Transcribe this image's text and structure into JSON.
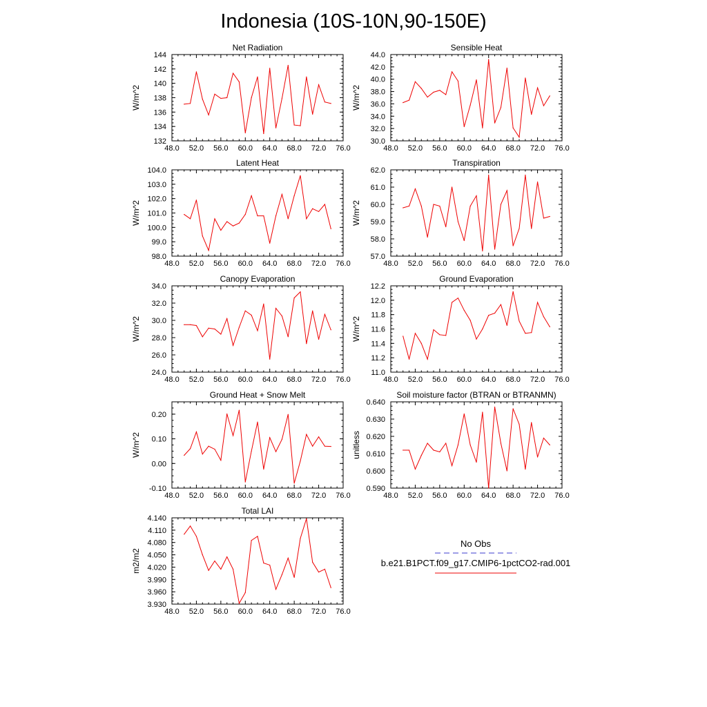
{
  "title": "Indonesia (10S-10N,90-150E)",
  "legend": {
    "entries": [
      {
        "label": "No Obs",
        "color": "#3a3acc",
        "style": "dashed"
      },
      {
        "label": "b.e21.B1PCT.f09_g17.CMIP6-1pctCO2-rad.001",
        "color": "#ee0000",
        "style": "solid"
      }
    ]
  },
  "chart_data": [
    {
      "type": "line",
      "title": "Net Radiation",
      "ylabel": "W/m^2",
      "xlim": [
        48,
        76
      ],
      "ylim": [
        132,
        144
      ],
      "xticks": [
        "48.0",
        "52.0",
        "56.0",
        "60.0",
        "64.0",
        "68.0",
        "72.0",
        "76.0"
      ],
      "yticks": [
        "132",
        "134",
        "136",
        "138",
        "140",
        "142",
        "144"
      ],
      "series": [
        {
          "color": "#ee0000",
          "x": [
            50,
            51,
            52,
            53,
            54,
            55,
            56,
            57,
            58,
            59,
            60,
            61,
            62,
            63,
            64,
            65,
            66,
            67,
            68,
            69,
            70,
            71,
            72,
            73,
            74
          ],
          "values": [
            137.1,
            137.2,
            141.6,
            137.8,
            135.6,
            138.5,
            137.9,
            138.0,
            141.4,
            140.2,
            133.1,
            138.0,
            140.9,
            133.0,
            142.1,
            133.8,
            137.9,
            142.5,
            134.2,
            134.1,
            140.9,
            135.7,
            139.8,
            137.4,
            137.2
          ]
        }
      ]
    },
    {
      "type": "line",
      "title": "Sensible Heat",
      "ylabel": "W/m^2",
      "xlim": [
        48,
        76
      ],
      "ylim": [
        30,
        44
      ],
      "xticks": [
        "48.0",
        "52.0",
        "56.0",
        "60.0",
        "64.0",
        "68.0",
        "72.0",
        "76.0"
      ],
      "yticks": [
        "30.0",
        "32.0",
        "34.0",
        "36.0",
        "38.0",
        "40.0",
        "42.0",
        "44.0"
      ],
      "series": [
        {
          "color": "#ee0000",
          "x": [
            50,
            51,
            52,
            53,
            54,
            55,
            56,
            57,
            58,
            59,
            60,
            61,
            62,
            63,
            64,
            65,
            66,
            67,
            68,
            69,
            70,
            71,
            72,
            73,
            74
          ],
          "values": [
            36.2,
            36.6,
            39.6,
            38.5,
            37.1,
            37.9,
            38.2,
            37.5,
            41.2,
            39.7,
            32.3,
            35.8,
            39.9,
            32.1,
            43.2,
            32.9,
            35.4,
            41.8,
            32.1,
            30.6,
            40.2,
            34.3,
            38.6,
            35.7,
            37.3
          ]
        }
      ]
    },
    {
      "type": "line",
      "title": "Latent Heat",
      "ylabel": "W/m^2",
      "xlim": [
        48,
        76
      ],
      "ylim": [
        98,
        104
      ],
      "xticks": [
        "48.0",
        "52.0",
        "56.0",
        "60.0",
        "64.0",
        "68.0",
        "72.0",
        "76.0"
      ],
      "yticks": [
        "98.0",
        "99.0",
        "100.0",
        "101.0",
        "102.0",
        "103.0",
        "104.0"
      ],
      "series": [
        {
          "color": "#ee0000",
          "x": [
            50,
            51,
            52,
            53,
            54,
            55,
            56,
            57,
            58,
            59,
            60,
            61,
            62,
            63,
            64,
            65,
            66,
            67,
            68,
            69,
            70,
            71,
            72,
            73,
            74
          ],
          "values": [
            100.9,
            100.6,
            101.9,
            99.4,
            98.4,
            100.6,
            99.8,
            100.4,
            100.1,
            100.3,
            100.9,
            102.2,
            100.8,
            100.8,
            98.9,
            100.8,
            102.3,
            100.6,
            102.2,
            103.6,
            100.6,
            101.3,
            101.1,
            101.6,
            99.9
          ]
        }
      ]
    },
    {
      "type": "line",
      "title": "Transpiration",
      "ylabel": "W/m^2",
      "xlim": [
        48,
        76
      ],
      "ylim": [
        57,
        62
      ],
      "xticks": [
        "48.0",
        "52.0",
        "56.0",
        "60.0",
        "64.0",
        "68.0",
        "72.0",
        "76.0"
      ],
      "yticks": [
        "57.0",
        "58.0",
        "59.0",
        "60.0",
        "61.0",
        "62.0"
      ],
      "series": [
        {
          "color": "#ee0000",
          "x": [
            50,
            51,
            52,
            53,
            54,
            55,
            56,
            57,
            58,
            59,
            60,
            61,
            62,
            63,
            64,
            65,
            66,
            67,
            68,
            69,
            70,
            71,
            72,
            73,
            74
          ],
          "values": [
            59.8,
            59.9,
            60.9,
            59.9,
            58.1,
            60.0,
            59.9,
            58.7,
            61.0,
            59.0,
            57.9,
            59.9,
            60.5,
            57.3,
            61.7,
            57.4,
            60.0,
            60.8,
            57.6,
            58.6,
            61.7,
            58.6,
            61.3,
            59.2,
            59.3
          ]
        }
      ]
    },
    {
      "type": "line",
      "title": "Canopy Evaporation",
      "ylabel": "W/m^2",
      "xlim": [
        48,
        76
      ],
      "ylim": [
        24,
        34
      ],
      "xticks": [
        "48.0",
        "52.0",
        "56.0",
        "60.0",
        "64.0",
        "68.0",
        "72.0",
        "76.0"
      ],
      "yticks": [
        "24.0",
        "26.0",
        "28.0",
        "30.0",
        "32.0",
        "34.0"
      ],
      "series": [
        {
          "color": "#ee0000",
          "x": [
            50,
            51,
            52,
            53,
            54,
            55,
            56,
            57,
            58,
            59,
            60,
            61,
            62,
            63,
            64,
            65,
            66,
            67,
            68,
            69,
            70,
            71,
            72,
            73,
            74
          ],
          "values": [
            29.5,
            29.5,
            29.4,
            28.1,
            29.1,
            29.0,
            28.4,
            30.2,
            27.1,
            29.2,
            31.1,
            30.6,
            28.8,
            31.9,
            25.5,
            31.4,
            30.5,
            28.1,
            32.6,
            33.3,
            27.3,
            31.1,
            27.8,
            30.7,
            28.9
          ]
        }
      ]
    },
    {
      "type": "line",
      "title": "Ground Evaporation",
      "ylabel": "W/m^2",
      "xlim": [
        48,
        76
      ],
      "ylim": [
        11.0,
        12.2
      ],
      "xticks": [
        "48.0",
        "52.0",
        "56.0",
        "60.0",
        "64.0",
        "68.0",
        "72.0",
        "76.0"
      ],
      "yticks": [
        "11.0",
        "11.2",
        "11.4",
        "11.6",
        "11.8",
        "12.0",
        "12.2"
      ],
      "series": [
        {
          "color": "#ee0000",
          "x": [
            50,
            51,
            52,
            53,
            54,
            55,
            56,
            57,
            58,
            59,
            60,
            61,
            62,
            63,
            64,
            65,
            66,
            67,
            68,
            69,
            70,
            71,
            72,
            73,
            74
          ],
          "values": [
            11.5,
            11.18,
            11.54,
            11.4,
            11.18,
            11.59,
            11.52,
            11.51,
            11.97,
            12.03,
            11.86,
            11.72,
            11.46,
            11.6,
            11.79,
            11.82,
            11.94,
            11.65,
            12.12,
            11.71,
            11.54,
            11.55,
            11.97,
            11.77,
            11.63
          ]
        }
      ]
    },
    {
      "type": "line",
      "title": "Ground Heat + Snow Melt",
      "ylabel": "W/m^2",
      "xlim": [
        48,
        76
      ],
      "ylim": [
        -0.1,
        0.25
      ],
      "xticks": [
        "48.0",
        "52.0",
        "56.0",
        "60.0",
        "64.0",
        "68.0",
        "72.0",
        "76.0"
      ],
      "yticks": [
        "-0.10",
        "0.00",
        "0.10",
        "0.20"
      ],
      "series": [
        {
          "color": "#ee0000",
          "x": [
            50,
            51,
            52,
            53,
            54,
            55,
            56,
            57,
            58,
            59,
            60,
            61,
            62,
            63,
            64,
            65,
            66,
            67,
            68,
            69,
            70,
            71,
            72,
            73,
            74
          ],
          "values": [
            0.033,
            0.06,
            0.128,
            0.038,
            0.07,
            0.058,
            0.013,
            0.201,
            0.113,
            0.216,
            -0.075,
            0.05,
            0.168,
            -0.023,
            0.105,
            0.048,
            0.098,
            0.199,
            -0.08,
            0.01,
            0.118,
            0.07,
            0.108,
            0.07,
            0.069
          ]
        }
      ]
    },
    {
      "type": "line",
      "title": "Soil moisture factor (BTRAN or BTRANMN)",
      "ylabel": "unitless",
      "xlim": [
        48,
        76
      ],
      "ylim": [
        0.59,
        0.64
      ],
      "xticks": [
        "48.0",
        "52.0",
        "56.0",
        "60.0",
        "64.0",
        "68.0",
        "72.0",
        "76.0"
      ],
      "yticks": [
        "0.590",
        "0.600",
        "0.610",
        "0.620",
        "0.630",
        "0.640"
      ],
      "series": [
        {
          "color": "#ee0000",
          "x": [
            50,
            51,
            52,
            53,
            54,
            55,
            56,
            57,
            58,
            59,
            60,
            61,
            62,
            63,
            64,
            65,
            66,
            67,
            68,
            69,
            70,
            71,
            72,
            73,
            74
          ],
          "values": [
            0.612,
            0.612,
            0.601,
            0.609,
            0.616,
            0.612,
            0.611,
            0.616,
            0.603,
            0.615,
            0.633,
            0.615,
            0.605,
            0.634,
            0.59,
            0.637,
            0.616,
            0.6,
            0.636,
            0.627,
            0.601,
            0.628,
            0.608,
            0.619,
            0.615
          ]
        }
      ]
    },
    {
      "type": "line",
      "title": "Total LAI",
      "ylabel": "m2/m2",
      "xlim": [
        48,
        76
      ],
      "ylim": [
        3.93,
        4.14
      ],
      "xticks": [
        "48.0",
        "52.0",
        "56.0",
        "60.0",
        "64.0",
        "68.0",
        "72.0",
        "76.0"
      ],
      "yticks": [
        "3.930",
        "3.960",
        "3.990",
        "4.020",
        "4.050",
        "4.080",
        "4.110",
        "4.140"
      ],
      "series": [
        {
          "color": "#ee0000",
          "x": [
            50,
            51,
            52,
            53,
            54,
            55,
            56,
            57,
            58,
            59,
            60,
            61,
            62,
            63,
            64,
            65,
            66,
            67,
            68,
            69,
            70,
            71,
            72,
            73,
            74
          ],
          "values": [
            4.1,
            4.12,
            4.095,
            4.05,
            4.012,
            4.035,
            4.015,
            4.045,
            4.015,
            3.932,
            3.958,
            4.085,
            4.095,
            4.03,
            4.025,
            3.966,
            4.002,
            4.042,
            3.995,
            4.09,
            4.138,
            4.032,
            4.008,
            4.015,
            3.97
          ]
        }
      ]
    }
  ]
}
